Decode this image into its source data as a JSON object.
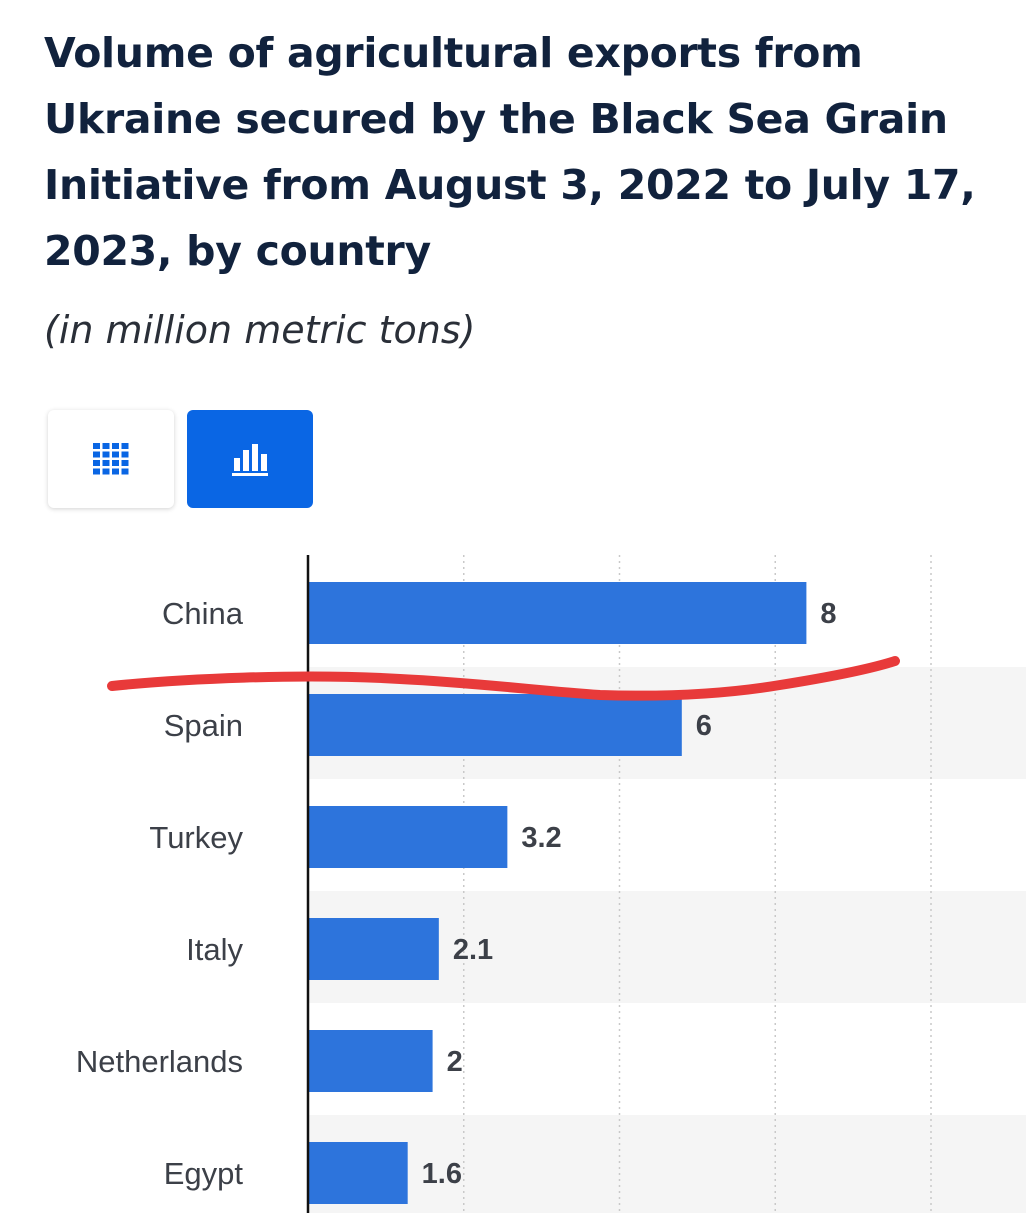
{
  "header": {
    "title": "Volume of agricultural exports from Ukraine secured by the Black Sea Grain Initiative from August 3, 2022 to July 17, 2023, by country",
    "subtitle": "(in million metric tons)"
  },
  "view_toggle": {
    "table_icon": "grid-icon",
    "chart_icon": "bar-chart-icon",
    "active": "chart"
  },
  "colors": {
    "bar": "#2d74dc",
    "accent": "#0a66e4",
    "annotation": "#e83a3a",
    "band": "#f5f5f5"
  },
  "chart_data": {
    "type": "bar",
    "orientation": "horizontal",
    "categories": [
      "China",
      "Spain",
      "Turkey",
      "Italy",
      "Netherlands",
      "Egypt"
    ],
    "values": [
      8,
      6,
      3.2,
      2.1,
      2,
      1.6
    ],
    "title": "Volume of agricultural exports from Ukraine secured by the Black Sea Grain Initiative from August 3, 2022 to July 17, 2023, by country",
    "unit": "(in million metric tons)",
    "xlim": [
      0,
      10
    ],
    "grid": true,
    "data_labels": true
  }
}
